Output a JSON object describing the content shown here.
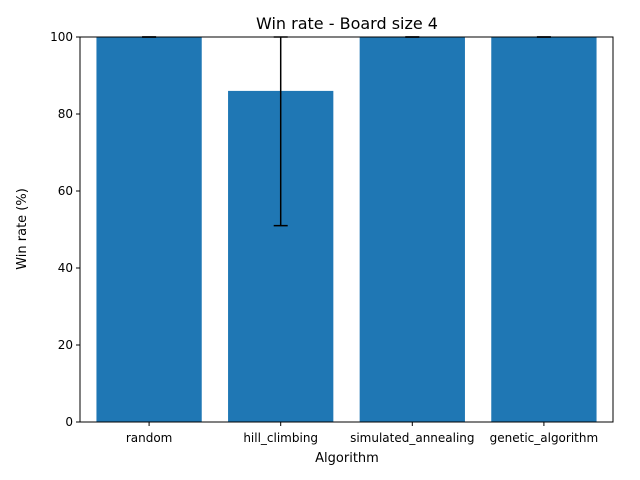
{
  "chart_data": {
    "type": "bar",
    "title": "Win rate - Board size 4",
    "xlabel": "Algorithm",
    "ylabel": "Win rate (%)",
    "categories": [
      "random",
      "hill_climbing",
      "simulated_annealing",
      "genetic_algorithm"
    ],
    "values": [
      100,
      86,
      100,
      100
    ],
    "error": [
      {
        "low": 100,
        "high": 100
      },
      {
        "low": 51,
        "high": 100
      },
      {
        "low": 100,
        "high": 100
      },
      {
        "low": 100,
        "high": 100
      }
    ],
    "ylim": [
      0,
      100
    ],
    "yticks": [
      0,
      20,
      40,
      60,
      80,
      100
    ],
    "grid": false,
    "bar_color": "#1f77b4",
    "error_color": "#000000"
  }
}
